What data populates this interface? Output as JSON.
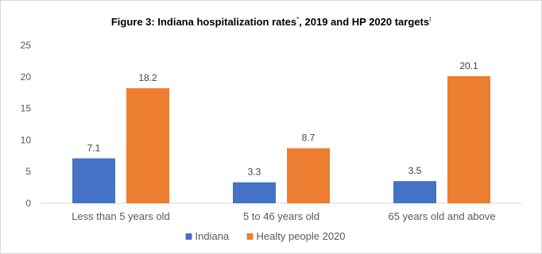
{
  "chart_data": {
    "type": "bar",
    "title": "Figure 3: Indiana hospitalization rates",
    "title_marks": [
      "*",
      ", 2019 and HP 2020 targets",
      "ǀ"
    ],
    "categories": [
      "Less than 5 years old",
      "5 to 46 years old",
      "65 years old and above"
    ],
    "series": [
      {
        "name": "Indiana",
        "values": [
          7.1,
          3.3,
          3.5
        ],
        "color": "#4472c4"
      },
      {
        "name": "Healty people 2020",
        "values": [
          18.2,
          8.7,
          20.1
        ],
        "color": "#ed7d31"
      }
    ],
    "ylim": [
      0,
      25
    ],
    "yticks": [
      0,
      5,
      10,
      15,
      20,
      25
    ],
    "grid": false,
    "legend": "bottom"
  }
}
